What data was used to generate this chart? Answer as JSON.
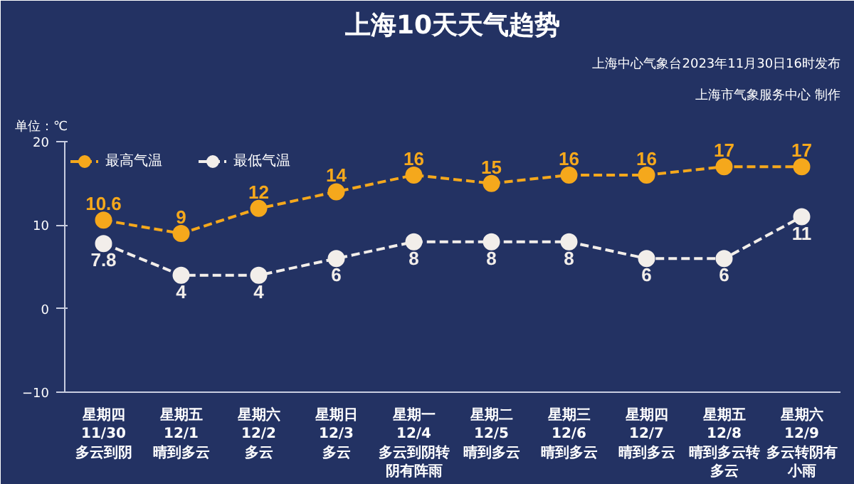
{
  "chart_data": {
    "type": "line",
    "title": "上海10天天气趋势",
    "ylabel": "单位：℃",
    "annotations": [
      "上海中心气象台2023年11月30日16时发布",
      "上海市气象服务中心 制作"
    ],
    "categories": [
      "星期四\n11/30\n多云到阴",
      "星期五\n12/1\n晴到多云",
      "星期六\n12/2\n多云",
      "星期日\n12/3\n多云",
      "星期一\n12/4\n多云到阴转阴有阵雨",
      "星期二\n12/5\n晴到多云",
      "星期三\n12/6\n晴到多云",
      "星期四\n12/7\n晴到多云",
      "星期五\n12/8\n晴到多云转多云",
      "星期六\n12/9\n多云转阴有小雨"
    ],
    "series": [
      {
        "name": "最高气温",
        "color": "#f5a81c",
        "values": [
          10.6,
          9,
          12,
          14,
          16,
          15,
          16,
          16,
          17,
          17
        ]
      },
      {
        "name": "最低气温",
        "color": "#f2eeea",
        "values": [
          7.8,
          4,
          4,
          6,
          8,
          8,
          8,
          6,
          6,
          11
        ]
      }
    ],
    "ylim": [
      -10,
      20
    ],
    "yticks": [
      -10,
      0,
      10,
      20
    ],
    "grid": false,
    "legend": "top left",
    "marker": "circle",
    "line_style": "dashed",
    "data_labels": true
  }
}
